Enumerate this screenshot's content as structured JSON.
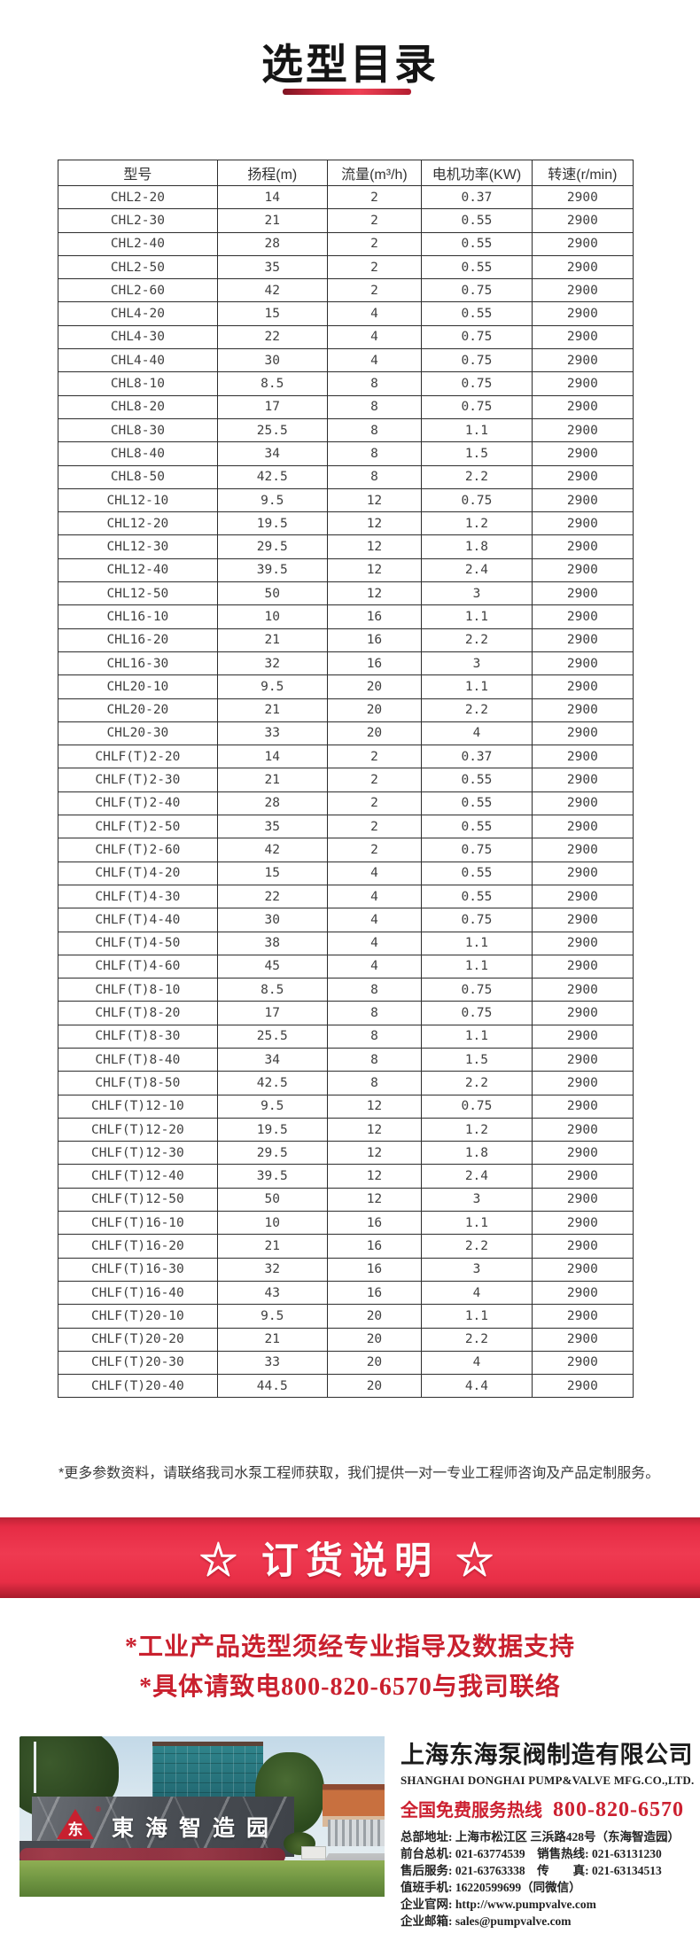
{
  "page": {
    "title": "选型目录"
  },
  "colors": {
    "accent_red": "#cc2030",
    "banner_red": "#e82e46",
    "logo_red": "#c8202f"
  },
  "table": {
    "headers": [
      "型号",
      "扬程(m)",
      "流量(m³/h)",
      "电机功率(KW)",
      "转速(r/min)"
    ],
    "rows": [
      [
        "CHL2-20",
        "14",
        "2",
        "0.37",
        "2900"
      ],
      [
        "CHL2-30",
        "21",
        "2",
        "0.55",
        "2900"
      ],
      [
        "CHL2-40",
        "28",
        "2",
        "0.55",
        "2900"
      ],
      [
        "CHL2-50",
        "35",
        "2",
        "0.55",
        "2900"
      ],
      [
        "CHL2-60",
        "42",
        "2",
        "0.75",
        "2900"
      ],
      [
        "CHL4-20",
        "15",
        "4",
        "0.55",
        "2900"
      ],
      [
        "CHL4-30",
        "22",
        "4",
        "0.75",
        "2900"
      ],
      [
        "CHL4-40",
        "30",
        "4",
        "0.75",
        "2900"
      ],
      [
        "CHL8-10",
        "8.5",
        "8",
        "0.75",
        "2900"
      ],
      [
        "CHL8-20",
        "17",
        "8",
        "0.75",
        "2900"
      ],
      [
        "CHL8-30",
        "25.5",
        "8",
        "1.1",
        "2900"
      ],
      [
        "CHL8-40",
        "34",
        "8",
        "1.5",
        "2900"
      ],
      [
        "CHL8-50",
        "42.5",
        "8",
        "2.2",
        "2900"
      ],
      [
        "CHL12-10",
        "9.5",
        "12",
        "0.75",
        "2900"
      ],
      [
        "CHL12-20",
        "19.5",
        "12",
        "1.2",
        "2900"
      ],
      [
        "CHL12-30",
        "29.5",
        "12",
        "1.8",
        "2900"
      ],
      [
        "CHL12-40",
        "39.5",
        "12",
        "2.4",
        "2900"
      ],
      [
        "CHL12-50",
        "50",
        "12",
        "3",
        "2900"
      ],
      [
        "CHL16-10",
        "10",
        "16",
        "1.1",
        "2900"
      ],
      [
        "CHL16-20",
        "21",
        "16",
        "2.2",
        "2900"
      ],
      [
        "CHL16-30",
        "32",
        "16",
        "3",
        "2900"
      ],
      [
        "CHL20-10",
        "9.5",
        "20",
        "1.1",
        "2900"
      ],
      [
        "CHL20-20",
        "21",
        "20",
        "2.2",
        "2900"
      ],
      [
        "CHL20-30",
        "33",
        "20",
        "4",
        "2900"
      ],
      [
        "CHLF(T)2-20",
        "14",
        "2",
        "0.37",
        "2900"
      ],
      [
        "CHLF(T)2-30",
        "21",
        "2",
        "0.55",
        "2900"
      ],
      [
        "CHLF(T)2-40",
        "28",
        "2",
        "0.55",
        "2900"
      ],
      [
        "CHLF(T)2-50",
        "35",
        "2",
        "0.55",
        "2900"
      ],
      [
        "CHLF(T)2-60",
        "42",
        "2",
        "0.75",
        "2900"
      ],
      [
        "CHLF(T)4-20",
        "15",
        "4",
        "0.55",
        "2900"
      ],
      [
        "CHLF(T)4-30",
        "22",
        "4",
        "0.55",
        "2900"
      ],
      [
        "CHLF(T)4-40",
        "30",
        "4",
        "0.75",
        "2900"
      ],
      [
        "CHLF(T)4-50",
        "38",
        "4",
        "1.1",
        "2900"
      ],
      [
        "CHLF(T)4-60",
        "45",
        "4",
        "1.1",
        "2900"
      ],
      [
        "CHLF(T)8-10",
        "8.5",
        "8",
        "0.75",
        "2900"
      ],
      [
        "CHLF(T)8-20",
        "17",
        "8",
        "0.75",
        "2900"
      ],
      [
        "CHLF(T)8-30",
        "25.5",
        "8",
        "1.1",
        "2900"
      ],
      [
        "CHLF(T)8-40",
        "34",
        "8",
        "1.5",
        "2900"
      ],
      [
        "CHLF(T)8-50",
        "42.5",
        "8",
        "2.2",
        "2900"
      ],
      [
        "CHLF(T)12-10",
        "9.5",
        "12",
        "0.75",
        "2900"
      ],
      [
        "CHLF(T)12-20",
        "19.5",
        "12",
        "1.2",
        "2900"
      ],
      [
        "CHLF(T)12-30",
        "29.5",
        "12",
        "1.8",
        "2900"
      ],
      [
        "CHLF(T)12-40",
        "39.5",
        "12",
        "2.4",
        "2900"
      ],
      [
        "CHLF(T)12-50",
        "50",
        "12",
        "3",
        "2900"
      ],
      [
        "CHLF(T)16-10",
        "10",
        "16",
        "1.1",
        "2900"
      ],
      [
        "CHLF(T)16-20",
        "21",
        "16",
        "2.2",
        "2900"
      ],
      [
        "CHLF(T)16-30",
        "32",
        "16",
        "3",
        "2900"
      ],
      [
        "CHLF(T)16-40",
        "43",
        "16",
        "4",
        "2900"
      ],
      [
        "CHLF(T)20-10",
        "9.5",
        "20",
        "1.1",
        "2900"
      ],
      [
        "CHLF(T)20-20",
        "21",
        "20",
        "2.2",
        "2900"
      ],
      [
        "CHLF(T)20-30",
        "33",
        "20",
        "4",
        "2900"
      ],
      [
        "CHLF(T)20-40",
        "44.5",
        "20",
        "4.4",
        "2900"
      ]
    ]
  },
  "footnote": "*更多参数资料，请联络我司水泵工程师获取，我们提供一对一专业工程师咨询及产品定制服务。",
  "order_banner": {
    "text": "☆ 订货说明 ☆"
  },
  "order_notes": [
    "*工业产品选型须经专业指导及数据支持",
    "*具体请致电800-820-6570与我司联络"
  ],
  "photo": {
    "sign_text": "東海智造园",
    "logo_glyph": "东",
    "logo_reg": "®"
  },
  "company": {
    "name_cn": "上海东海泵阀制造有限公司",
    "name_en": "SHANGHAI DONGHAI PUMP&VALVE MFG.CO.,LTD.",
    "hotline_label": "全国免费服务热线",
    "hotline_number": "800-820-6570",
    "details": [
      "总部地址: 上海市松江区 三浜路428号（东海智造园）",
      "前台总机: 021-63774539　销售热线: 021-63131230",
      "售后服务: 021-63763338　传　　真: 021-63134513",
      "值班手机: 16220599699（同微信）",
      "企业官网: http://www.pumpvalve.com",
      "企业邮箱: sales@pumpvalve.com"
    ]
  }
}
